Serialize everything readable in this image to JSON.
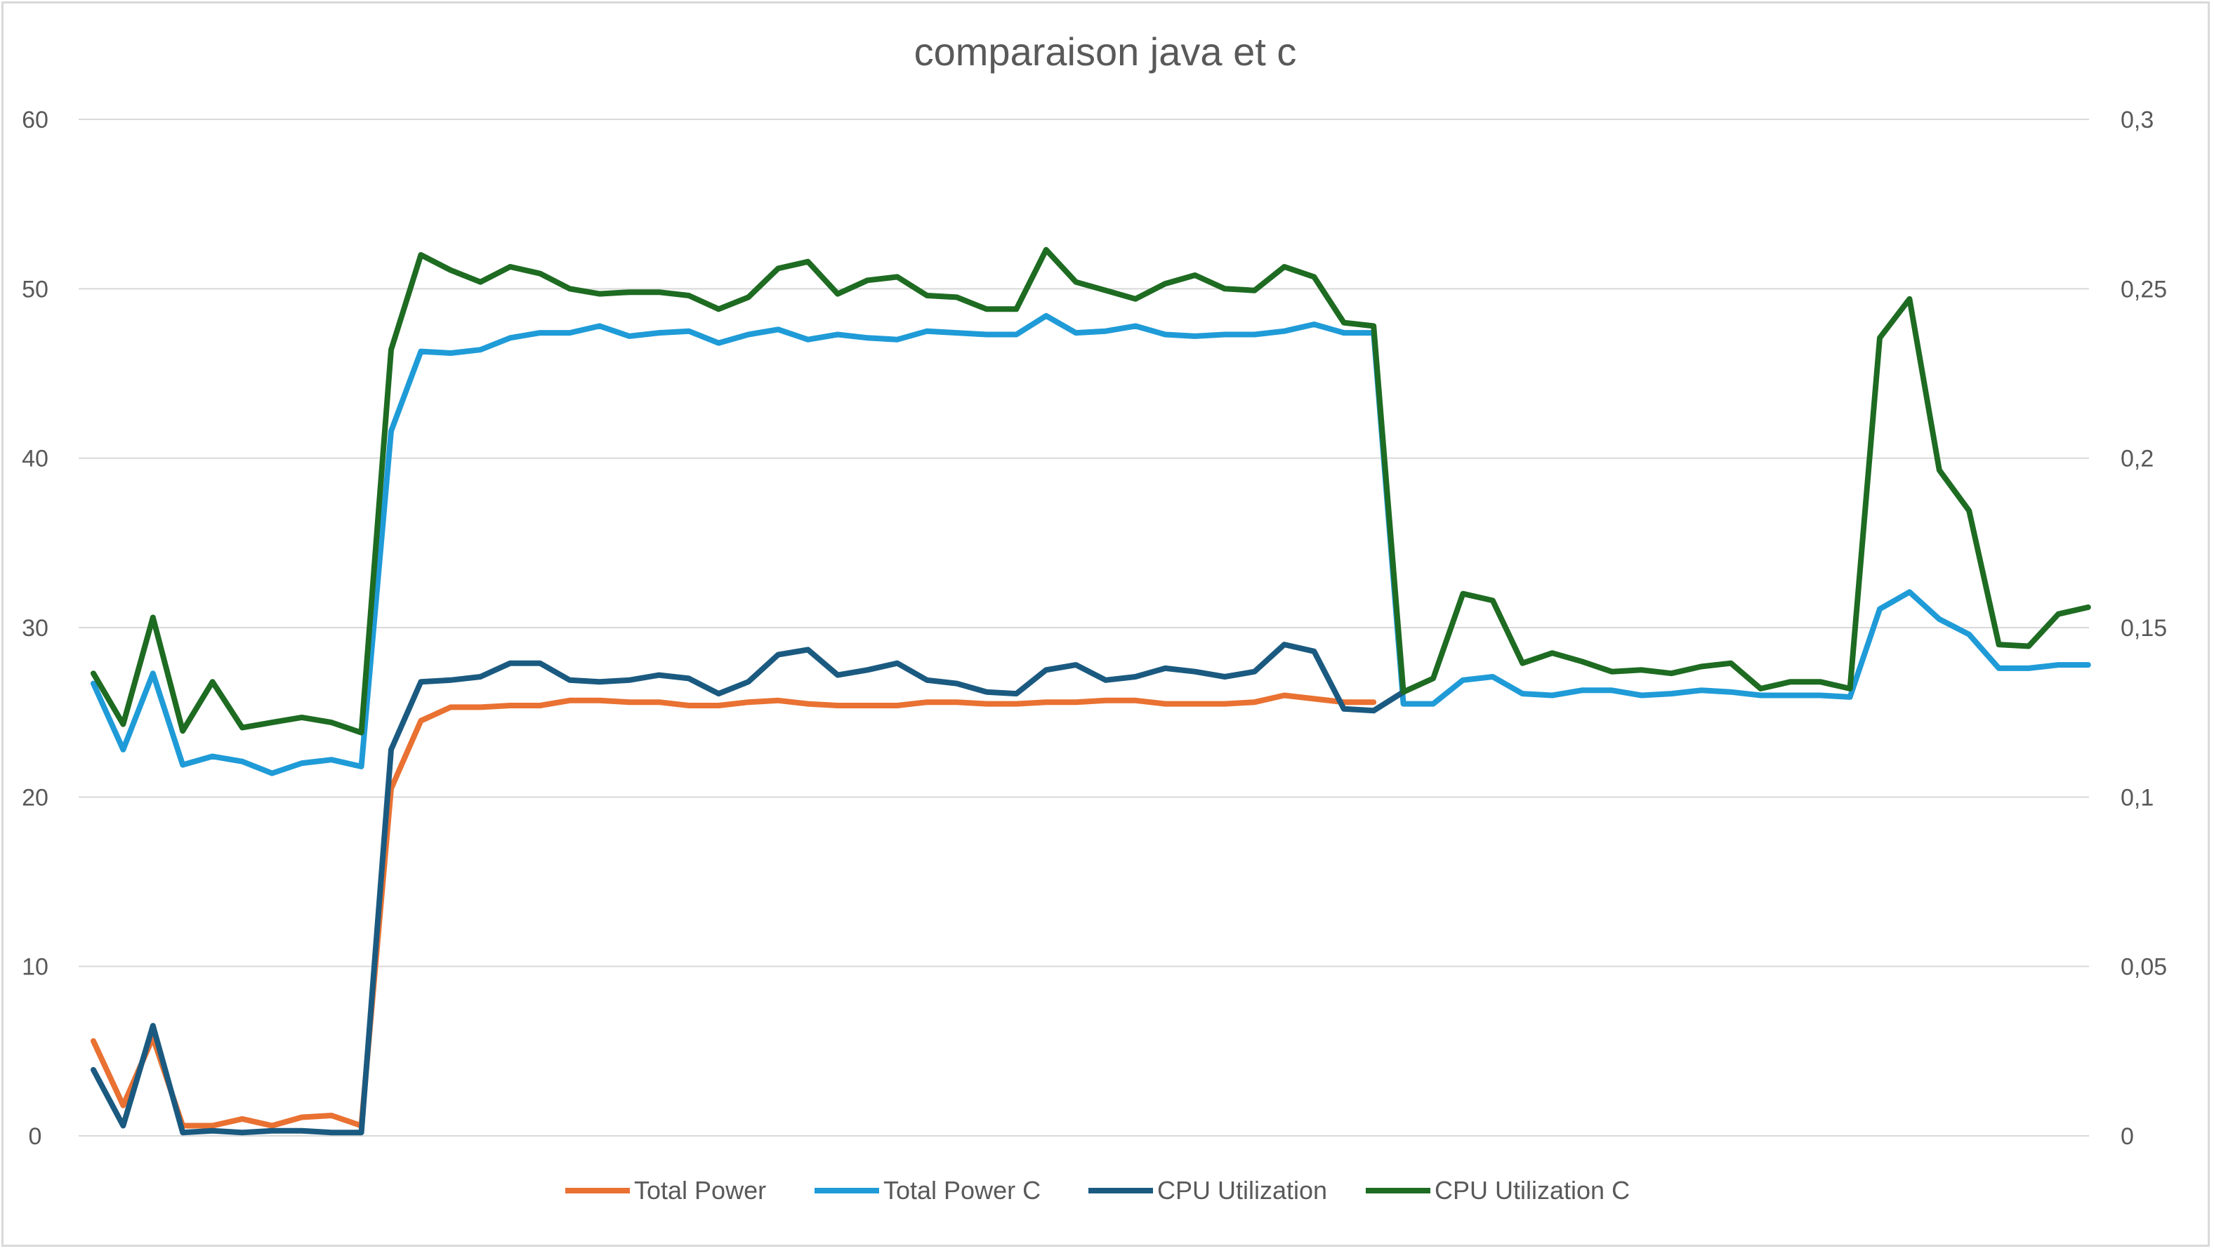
{
  "chart_data": {
    "type": "line",
    "title": "comparaison java et c",
    "y_left": {
      "ylim": [
        0,
        60
      ],
      "ticks": [
        "0",
        "10",
        "20",
        "30",
        "40",
        "50",
        "60"
      ]
    },
    "y_right": {
      "ylim": [
        0,
        0.3
      ],
      "ticks": [
        "0",
        "0,05",
        "0,1",
        "0,15",
        "0,2",
        "0,25",
        "0,3"
      ]
    },
    "grid": true,
    "legend_position": "bottom",
    "series": [
      {
        "name": "Total Power",
        "color": "#e97132",
        "axis": "left",
        "values": [
          5.6,
          1.8,
          5.8,
          0.6,
          0.6,
          1.0,
          0.6,
          1.1,
          1.2,
          0.6,
          20.5,
          24.5,
          25.3,
          25.3,
          25.4,
          25.4,
          25.7,
          25.7,
          25.6,
          25.6,
          25.4,
          25.4,
          25.6,
          25.7,
          25.5,
          25.4,
          25.4,
          25.4,
          25.6,
          25.6,
          25.5,
          25.5,
          25.6,
          25.6,
          25.7,
          25.7,
          25.5,
          25.5,
          25.5,
          25.6,
          26.0,
          25.8,
          25.6,
          25.6
        ]
      },
      {
        "name": "Total Power C",
        "color": "#1f9bd7",
        "axis": "left",
        "values": [
          26.7,
          22.8,
          27.3,
          21.9,
          22.4,
          22.1,
          21.4,
          22.0,
          22.2,
          21.8,
          41.6,
          46.3,
          46.2,
          46.4,
          47.1,
          47.4,
          47.4,
          47.8,
          47.2,
          47.4,
          47.5,
          46.8,
          47.3,
          47.6,
          47.0,
          47.3,
          47.1,
          47.0,
          47.5,
          47.4,
          47.3,
          47.3,
          48.4,
          47.4,
          47.5,
          47.8,
          47.3,
          47.2,
          47.3,
          47.3,
          47.5,
          47.9,
          47.4,
          47.4,
          25.5,
          25.5,
          26.9,
          27.1,
          26.1,
          26.0,
          26.3,
          26.3,
          26.0,
          26.1,
          26.3,
          26.2,
          26.0,
          26.0,
          26.0,
          25.9,
          31.1,
          32.1,
          30.5,
          29.6,
          27.6,
          27.6,
          27.8,
          27.8
        ]
      },
      {
        "name": "CPU Utilization",
        "color": "#1b5a80",
        "axis": "right",
        "values": [
          0.0195,
          0.003,
          0.0325,
          0.001,
          0.0015,
          0.001,
          0.0015,
          0.0015,
          0.001,
          0.001,
          0.114,
          0.134,
          0.1345,
          0.1355,
          0.1395,
          0.1395,
          0.1345,
          0.134,
          0.1345,
          0.136,
          0.135,
          0.1305,
          0.134,
          0.142,
          0.1435,
          0.136,
          0.1375,
          0.1395,
          0.1345,
          0.1335,
          0.131,
          0.1305,
          0.1375,
          0.139,
          0.1345,
          0.1355,
          0.138,
          0.137,
          0.1355,
          0.137,
          0.145,
          0.143,
          0.126,
          0.1255,
          0.131
        ]
      },
      {
        "name": "CPU Utilization C",
        "color": "#1e6b22",
        "axis": "right",
        "values": [
          0.1365,
          0.1215,
          0.153,
          0.1195,
          0.134,
          0.1205,
          0.122,
          0.1235,
          0.122,
          0.119,
          0.232,
          0.26,
          0.2555,
          0.252,
          0.2565,
          0.2545,
          0.25,
          0.2485,
          0.249,
          0.249,
          0.248,
          0.244,
          0.2475,
          0.256,
          0.258,
          0.2485,
          0.2525,
          0.2535,
          0.248,
          0.2475,
          0.244,
          0.244,
          0.2615,
          0.252,
          0.2495,
          0.247,
          0.2515,
          0.254,
          0.25,
          0.2495,
          0.2565,
          0.2535,
          0.24,
          0.239,
          0.131,
          0.135,
          0.16,
          0.158,
          0.1395,
          0.1425,
          0.14,
          0.137,
          0.1375,
          0.1365,
          0.1385,
          0.1395,
          0.132,
          0.134,
          0.134,
          0.132,
          0.2355,
          0.247,
          0.1965,
          0.1845,
          0.145,
          0.1445,
          0.154,
          0.156
        ]
      }
    ]
  }
}
